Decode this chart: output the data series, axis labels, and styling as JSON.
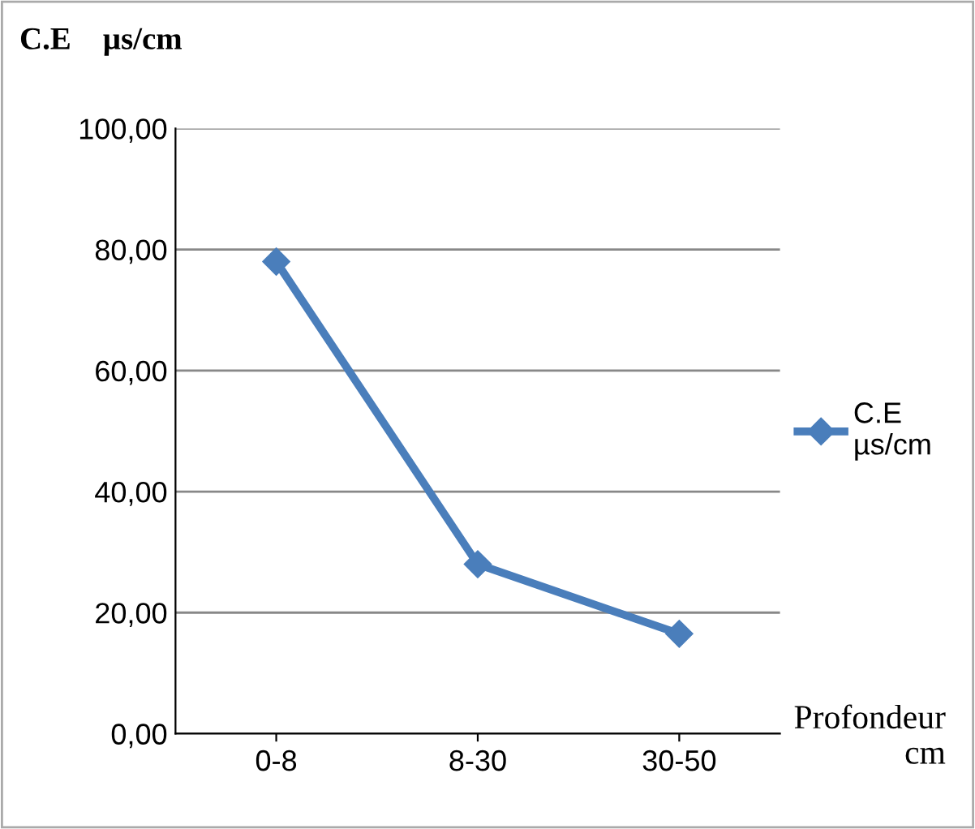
{
  "chart_data": {
    "type": "line",
    "ylabel": "C.E    µs/cm",
    "xlabel": "Profondeur\ncm",
    "categories": [
      "0-8",
      "8-30",
      "30-50"
    ],
    "series": [
      {
        "name": "C.E\nµs/cm",
        "color": "#4a7ebb",
        "values": [
          78,
          28,
          16.5
        ]
      }
    ],
    "ylim": [
      0,
      100
    ],
    "yticks": [
      {
        "value": 0,
        "label": "0,00"
      },
      {
        "value": 20,
        "label": "20,00"
      },
      {
        "value": 40,
        "label": "40,00"
      },
      {
        "value": 60,
        "label": "60,00"
      },
      {
        "value": 80,
        "label": "80,00"
      },
      {
        "value": 100,
        "label": "100,00"
      }
    ],
    "grid": "y",
    "legend": "right",
    "marker": "diamond",
    "line_style": "solid"
  }
}
